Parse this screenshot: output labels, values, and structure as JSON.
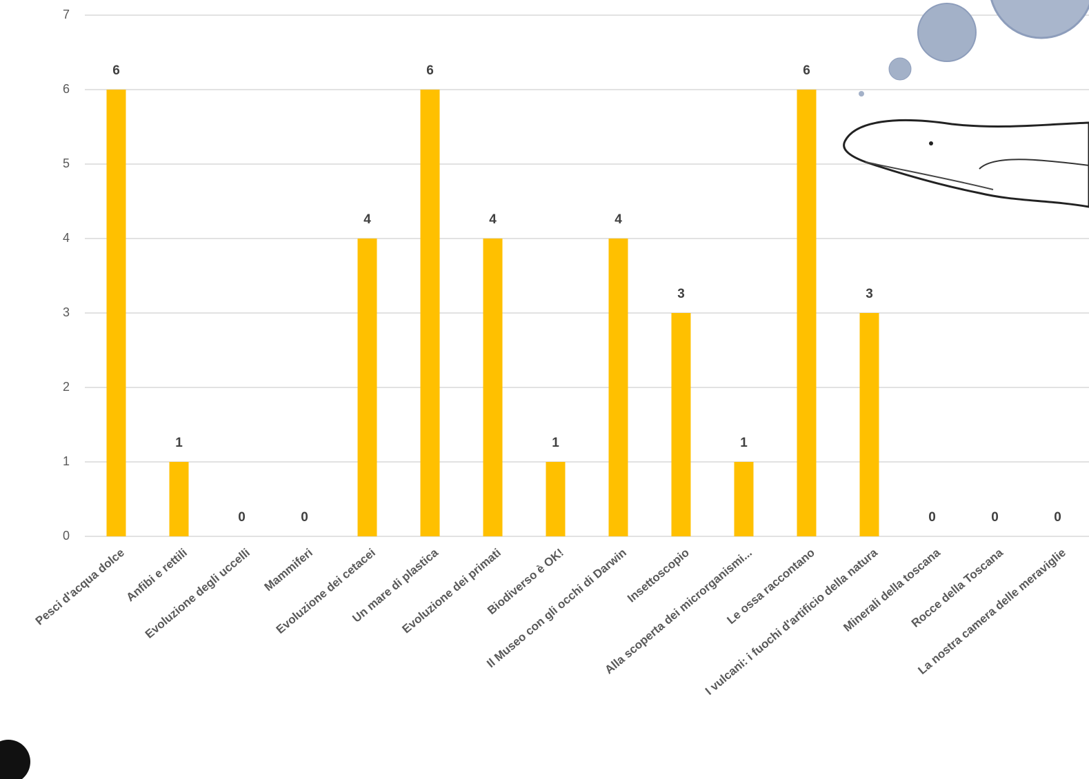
{
  "chart_data": {
    "type": "bar",
    "categories": [
      "Pesci d'acqua dolce",
      "Anfibi e rettili",
      "Evoluzione degli uccelli",
      "Mammiferi",
      "Evoluzione dei cetacei",
      "Un mare di plastica",
      "Evoluzione dei primati",
      "Biodiverso è OK!",
      "Il Museo con gli occhi di Darwin",
      "Insettoscopio",
      "Alla scoperta dei microrganismi...",
      "Le ossa raccontano",
      "I vulcani: i fuochi d'artificio della natura",
      "Minerali della toscana",
      "Rocce della Toscana",
      "La nostra camera delle meraviglie"
    ],
    "values": [
      6,
      1,
      0,
      0,
      4,
      6,
      4,
      1,
      4,
      3,
      1,
      6,
      3,
      0,
      0,
      0
    ],
    "color": "#ffc000",
    "ylim": [
      0,
      7
    ],
    "yticks": [
      0,
      1,
      2,
      3,
      4,
      5,
      6,
      7
    ],
    "grid": true
  }
}
